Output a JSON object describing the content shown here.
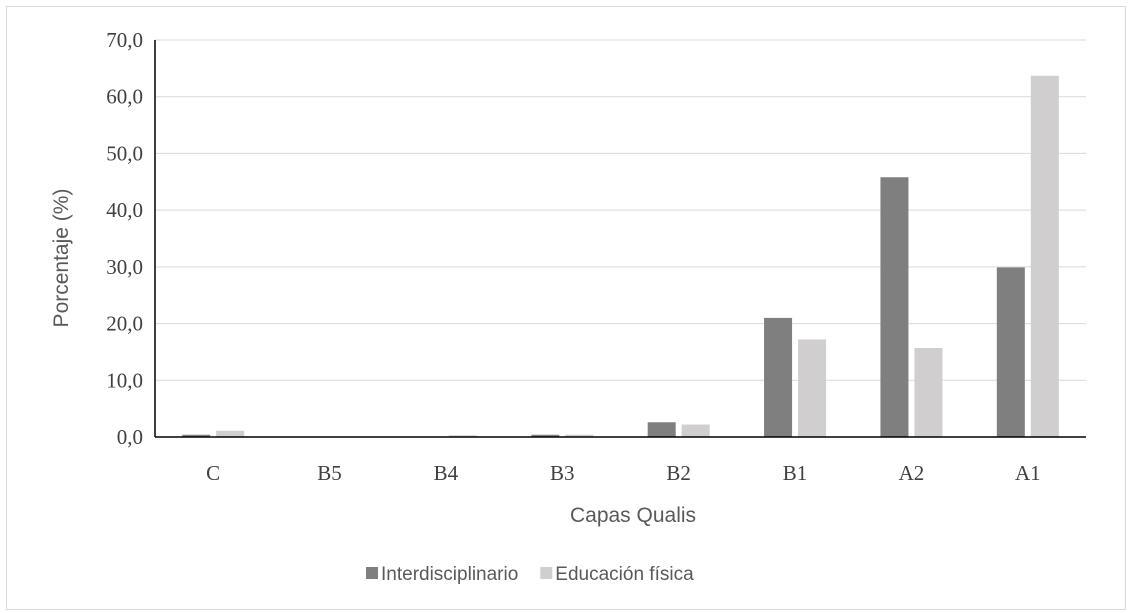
{
  "chart_data": {
    "type": "bar",
    "categories": [
      "C",
      "B5",
      "B4",
      "B3",
      "B2",
      "B1",
      "A2",
      "A1"
    ],
    "series": [
      {
        "name": "Interdisciplinario",
        "color": "#7f7f7f",
        "values": [
          0.4,
          0.0,
          0.0,
          0.4,
          2.6,
          21.0,
          45.8,
          29.9
        ]
      },
      {
        "name": "Educación física",
        "color": "#d0cece",
        "values": [
          1.1,
          0.0,
          0.3,
          0.4,
          2.2,
          17.2,
          15.7,
          63.7
        ]
      }
    ],
    "xlabel": "Capas Qualis",
    "ylabel": "Porcentaje (%)",
    "ylim": [
      0,
      70
    ],
    "yticks": [
      "0,0",
      "10,0",
      "20,0",
      "30,0",
      "40,0",
      "50,0",
      "60,0",
      "70,0"
    ],
    "grid": true,
    "legend_position": "bottom"
  }
}
